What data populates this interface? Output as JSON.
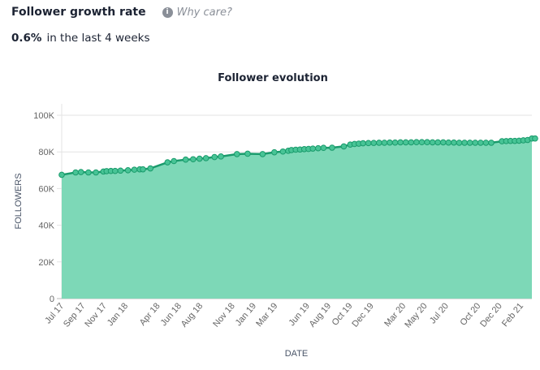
{
  "header": {
    "title": "Follower growth rate",
    "why_label": "Why care?",
    "info_icon": "i"
  },
  "rate": {
    "value": "0.6%",
    "text": "in the last 4 weeks"
  },
  "chart_data": {
    "type": "area",
    "title": "Follower evolution",
    "xlabel": "DATE",
    "ylabel": "FOLLOWERS",
    "ylim": [
      0,
      100000
    ],
    "yticks": [
      {
        "v": 0,
        "label": "0"
      },
      {
        "v": 20000,
        "label": "20K"
      },
      {
        "v": 40000,
        "label": "40K"
      },
      {
        "v": 60000,
        "label": "60K"
      },
      {
        "v": 80000,
        "label": "80K"
      },
      {
        "v": 100000,
        "label": "100K"
      }
    ],
    "x_unit": "months since Jul 2017",
    "xlim": [
      0,
      44
    ],
    "xticks": [
      {
        "m": 0,
        "label": "Jul 17"
      },
      {
        "m": 2,
        "label": "Sep 17"
      },
      {
        "m": 4,
        "label": "Nov 17"
      },
      {
        "m": 6,
        "label": "Jan 18"
      },
      {
        "m": 9,
        "label": "Apr 18"
      },
      {
        "m": 11,
        "label": "Jun 18"
      },
      {
        "m": 13,
        "label": "Aug 18"
      },
      {
        "m": 16,
        "label": "Nov 18"
      },
      {
        "m": 18,
        "label": "Jan 19"
      },
      {
        "m": 20,
        "label": "Mar 19"
      },
      {
        "m": 23,
        "label": "Jun 19"
      },
      {
        "m": 25,
        "label": "Aug 19"
      },
      {
        "m": 27,
        "label": "Oct 19"
      },
      {
        "m": 29,
        "label": "Dec 19"
      },
      {
        "m": 32,
        "label": "Mar 20"
      },
      {
        "m": 34,
        "label": "May 20"
      },
      {
        "m": 36,
        "label": "Jul 20"
      },
      {
        "m": 39,
        "label": "Oct 20"
      },
      {
        "m": 41,
        "label": "Dec 20"
      },
      {
        "m": 43,
        "label": "Feb 21"
      }
    ],
    "points": [
      [
        0,
        67500
      ],
      [
        1.3,
        68800
      ],
      [
        1.8,
        69000
      ],
      [
        2.5,
        68800
      ],
      [
        3.2,
        68800
      ],
      [
        3.9,
        69300
      ],
      [
        4.2,
        69500
      ],
      [
        4.6,
        69600
      ],
      [
        5.0,
        69600
      ],
      [
        5.5,
        69800
      ],
      [
        6.2,
        70000
      ],
      [
        6.8,
        70300
      ],
      [
        7.3,
        70500
      ],
      [
        7.6,
        70500
      ],
      [
        8.3,
        71000
      ],
      [
        9.9,
        74300
      ],
      [
        10.5,
        75000
      ],
      [
        11.6,
        75800
      ],
      [
        12.3,
        76000
      ],
      [
        12.9,
        76300
      ],
      [
        13.5,
        76600
      ],
      [
        14.3,
        77200
      ],
      [
        14.9,
        77500
      ],
      [
        16.4,
        78800
      ],
      [
        17.4,
        79000
      ],
      [
        18.8,
        78800
      ],
      [
        19.9,
        79800
      ],
      [
        20.7,
        80200
      ],
      [
        21.2,
        80600
      ],
      [
        21.5,
        81000
      ],
      [
        21.9,
        81200
      ],
      [
        22.3,
        81300
      ],
      [
        22.7,
        81500
      ],
      [
        23.1,
        81600
      ],
      [
        23.5,
        81800
      ],
      [
        24,
        82000
      ],
      [
        24.5,
        82200
      ],
      [
        25.3,
        82300
      ],
      [
        26.4,
        83000
      ],
      [
        27.0,
        84000
      ],
      [
        27.4,
        84300
      ],
      [
        27.8,
        84500
      ],
      [
        28.2,
        84700
      ],
      [
        28.7,
        84800
      ],
      [
        29.2,
        84900
      ],
      [
        29.7,
        85000
      ],
      [
        30.2,
        85000
      ],
      [
        30.7,
        85100
      ],
      [
        31.2,
        85100
      ],
      [
        31.7,
        85200
      ],
      [
        32.2,
        85200
      ],
      [
        32.7,
        85200
      ],
      [
        33.2,
        85300
      ],
      [
        33.7,
        85300
      ],
      [
        34.2,
        85300
      ],
      [
        34.7,
        85200
      ],
      [
        35.2,
        85200
      ],
      [
        35.7,
        85200
      ],
      [
        36.2,
        85100
      ],
      [
        36.7,
        85100
      ],
      [
        37.2,
        85000
      ],
      [
        37.7,
        85000
      ],
      [
        38.2,
        85000
      ],
      [
        38.7,
        85000
      ],
      [
        39.2,
        85000
      ],
      [
        39.7,
        85000
      ],
      [
        40.2,
        85000
      ],
      [
        41.2,
        85800
      ],
      [
        41.6,
        85900
      ],
      [
        42.0,
        86000
      ],
      [
        42.4,
        86000
      ],
      [
        42.8,
        86100
      ],
      [
        43.2,
        86300
      ],
      [
        43.6,
        86500
      ],
      [
        44,
        87300
      ],
      [
        44.3,
        87300
      ]
    ],
    "colors": {
      "fill": "#7dd8b7",
      "line": "#1a9b6c",
      "marker": "#48c496",
      "grid": "#e3e3e3"
    }
  }
}
